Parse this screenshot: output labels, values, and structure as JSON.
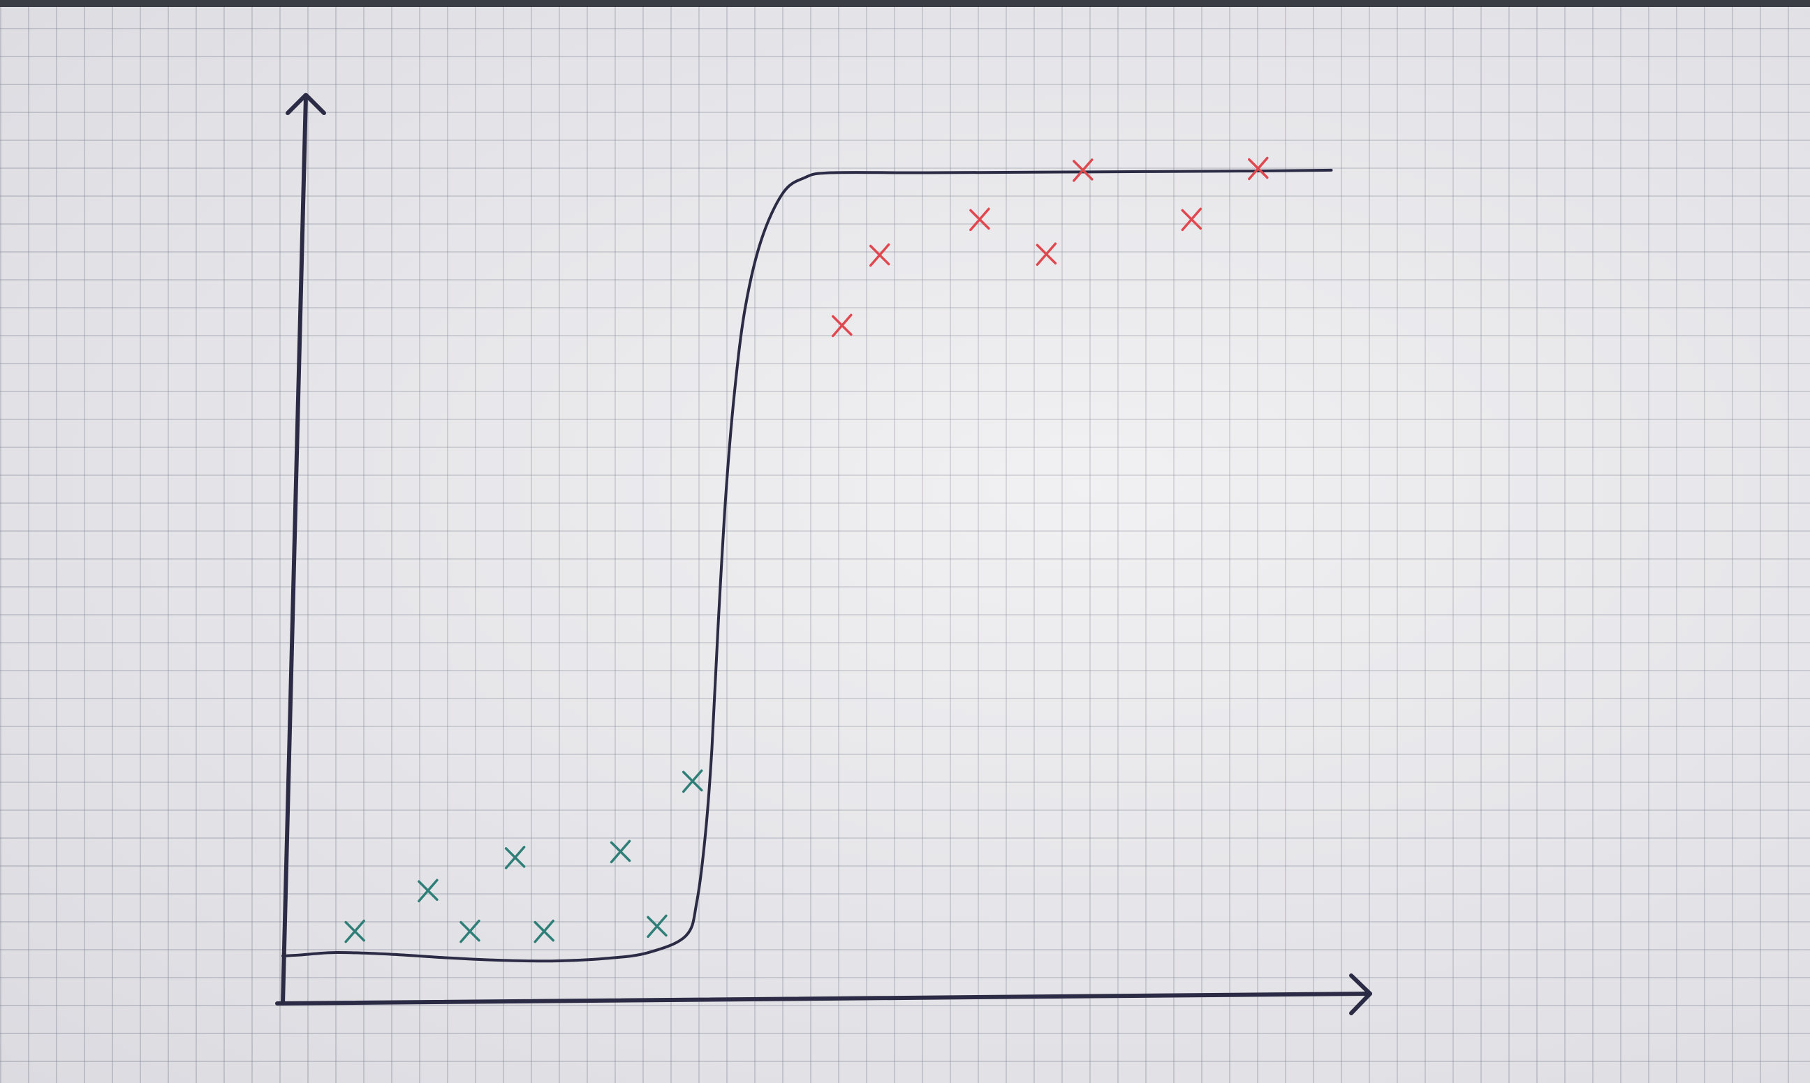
{
  "colors": {
    "paper": "#ececef",
    "ink": "#2b2b45",
    "class0": "#2f7f78",
    "class1": "#e0484f"
  },
  "chart_data": {
    "type": "scatter",
    "title": "",
    "xlabel": "",
    "ylabel": "",
    "xlim": [
      0,
      100
    ],
    "ylim": [
      0,
      100
    ],
    "grid": true,
    "legend": "none",
    "series": [
      {
        "color": "#2f7f78",
        "marker": "x",
        "points": [
          {
            "x": 6.7,
            "y": 8.5
          },
          {
            "x": 13.5,
            "y": 13.3
          },
          {
            "x": 17.4,
            "y": 8.5
          },
          {
            "x": 21.6,
            "y": 17.2
          },
          {
            "x": 24.3,
            "y": 8.5
          },
          {
            "x": 31.4,
            "y": 17.9
          },
          {
            "x": 34.8,
            "y": 9.1
          },
          {
            "x": 38.1,
            "y": 26.2
          }
        ]
      },
      {
        "color": "#e0484f",
        "marker": "x",
        "points": [
          {
            "x": 52.0,
            "y": 79.9
          },
          {
            "x": 55.5,
            "y": 88.2
          },
          {
            "x": 64.8,
            "y": 92.4
          },
          {
            "x": 71.0,
            "y": 88.3
          },
          {
            "x": 74.4,
            "y": 98.2
          },
          {
            "x": 84.5,
            "y": 92.4
          },
          {
            "x": 90.7,
            "y": 98.4
          }
        ]
      }
    ],
    "curve": {
      "type": "sigmoid",
      "points": [
        [
          0,
          5.6
        ],
        [
          1.5,
          5.7
        ],
        [
          5,
          6.0
        ],
        [
          10,
          5.8
        ],
        [
          15,
          5.4
        ],
        [
          20,
          5.1
        ],
        [
          25,
          5.0
        ],
        [
          30,
          5.3
        ],
        [
          34,
          6.0
        ],
        [
          37.5,
          8.0
        ],
        [
          38.5,
          12.0
        ],
        [
          39.3,
          20.0
        ],
        [
          39.9,
          30.0
        ],
        [
          40.5,
          45.0
        ],
        [
          41.2,
          60.0
        ],
        [
          42.0,
          72.0
        ],
        [
          43.0,
          82.0
        ],
        [
          44.5,
          90.0
        ],
        [
          46.5,
          95.5
        ],
        [
          48.5,
          97.3
        ],
        [
          51,
          97.9
        ],
        [
          60,
          97.9
        ],
        [
          75,
          98.0
        ],
        [
          90,
          98.1
        ],
        [
          97.5,
          98.2
        ]
      ]
    }
  }
}
